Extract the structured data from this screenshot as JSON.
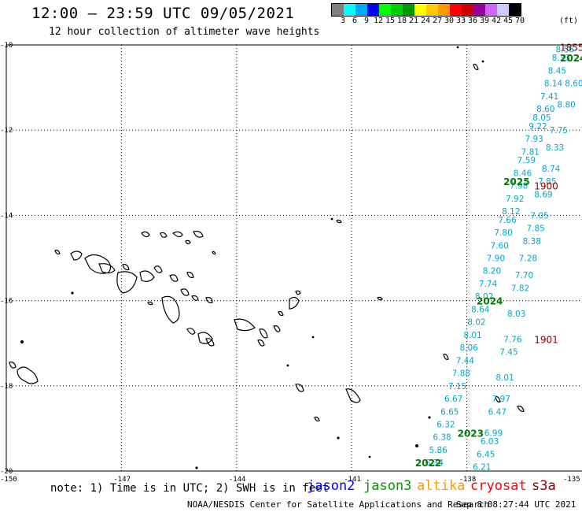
{
  "header": {
    "title": "12:00 — 23:59 UTC 09/05/2021",
    "subtitle": "12 hour collection of altimeter wave heights"
  },
  "legend": {
    "colors": [
      "#808080",
      "#00ffff",
      "#00aaff",
      "#0000ff",
      "#00ff00",
      "#00cc00",
      "#009900",
      "#ffff00",
      "#ffcc00",
      "#ff9900",
      "#ff0000",
      "#cc0000",
      "#990099",
      "#cc66ff",
      "#ccccff",
      "#000000"
    ],
    "labels": [
      "3",
      "6",
      "9",
      "12",
      "15",
      "18",
      "21",
      "24",
      "27",
      "30",
      "33",
      "36",
      "39",
      "42",
      "45",
      "70"
    ],
    "unit": "(ft)"
  },
  "map": {
    "lat_labels": [
      "-10",
      "-12",
      "-14",
      "-16",
      "-18",
      "-20"
    ],
    "lon_labels": [
      "-150",
      "-147",
      "-144",
      "-141",
      "-138",
      "-135"
    ],
    "track_color": "#00a8cc",
    "track_a": [
      {
        "lat": -10.1,
        "lon": -135.4,
        "value": "8.56"
      },
      {
        "lat": -10.3,
        "lon": -135.5,
        "value": "8.33"
      },
      {
        "lat": -10.6,
        "lon": -135.6,
        "value": "8.45"
      },
      {
        "lat": -10.9,
        "lon": -135.7,
        "value": "8.14"
      },
      {
        "lat": -11.2,
        "lon": -135.8,
        "value": "7.41"
      },
      {
        "lat": -11.5,
        "lon": -135.9,
        "value": "8.60"
      },
      {
        "lat": -11.7,
        "lon": -136.0,
        "value": "8.05"
      },
      {
        "lat": -11.9,
        "lon": -136.1,
        "value": "9.22"
      },
      {
        "lat": -12.2,
        "lon": -136.2,
        "value": "7.93"
      },
      {
        "lat": -12.5,
        "lon": -136.3,
        "value": "7.81"
      },
      {
        "lat": -12.7,
        "lon": -136.4,
        "value": "7.59"
      },
      {
        "lat": -13.0,
        "lon": -136.5,
        "value": "8.46"
      },
      {
        "lat": -13.3,
        "lon": -136.6,
        "value": "7.98"
      },
      {
        "lat": -13.6,
        "lon": -136.7,
        "value": "7.92"
      },
      {
        "lat": -13.9,
        "lon": -136.8,
        "value": "8.12"
      },
      {
        "lat": -14.1,
        "lon": -136.9,
        "value": "7.66"
      },
      {
        "lat": -14.4,
        "lon": -137.0,
        "value": "7.80"
      },
      {
        "lat": -14.7,
        "lon": -137.1,
        "value": "7.60"
      },
      {
        "lat": -15.0,
        "lon": -137.2,
        "value": "7.90"
      },
      {
        "lat": -15.3,
        "lon": -137.3,
        "value": "8.20"
      },
      {
        "lat": -15.6,
        "lon": -137.4,
        "value": "7.74"
      },
      {
        "lat": -15.9,
        "lon": -137.5,
        "value": "8.02"
      },
      {
        "lat": -16.2,
        "lon": -137.6,
        "value": "8.64"
      },
      {
        "lat": -16.5,
        "lon": -137.7,
        "value": "8.02"
      },
      {
        "lat": -16.8,
        "lon": -137.8,
        "value": "8.01"
      },
      {
        "lat": -17.1,
        "lon": -137.9,
        "value": "8.06"
      },
      {
        "lat": -17.4,
        "lon": -138.0,
        "value": "7.44"
      },
      {
        "lat": -17.7,
        "lon": -138.1,
        "value": "7.88"
      },
      {
        "lat": -18.0,
        "lon": -138.2,
        "value": "7.15"
      },
      {
        "lat": -18.3,
        "lon": -138.3,
        "value": "6.67"
      },
      {
        "lat": -18.6,
        "lon": -138.4,
        "value": "6.65"
      },
      {
        "lat": -18.9,
        "lon": -138.5,
        "value": "6.32"
      },
      {
        "lat": -19.2,
        "lon": -138.6,
        "value": "6.38"
      },
      {
        "lat": -19.5,
        "lon": -138.7,
        "value": "5.86"
      },
      {
        "lat": -19.8,
        "lon": -138.8,
        "value": "6.34"
      }
    ],
    "track_b": [
      {
        "lat": -10.9,
        "lon": -135.2,
        "value": "8.60"
      },
      {
        "lat": -11.4,
        "lon": -135.4,
        "value": "8.80"
      },
      {
        "lat": -12.0,
        "lon": -135.6,
        "value": "7.75"
      },
      {
        "lat": -12.4,
        "lon": -135.7,
        "value": "8.33"
      },
      {
        "lat": -12.9,
        "lon": -135.8,
        "value": "8.74"
      },
      {
        "lat": -13.2,
        "lon": -135.9,
        "value": "7.85"
      },
      {
        "lat": -13.5,
        "lon": -136.0,
        "value": "8.69"
      },
      {
        "lat": -14.0,
        "lon": -136.1,
        "value": "7.05"
      },
      {
        "lat": -14.3,
        "lon": -136.2,
        "value": "7.85"
      },
      {
        "lat": -14.6,
        "lon": -136.3,
        "value": "8.38"
      },
      {
        "lat": -15.0,
        "lon": -136.4,
        "value": "7.28"
      },
      {
        "lat": -15.4,
        "lon": -136.5,
        "value": "7.70"
      },
      {
        "lat": -15.7,
        "lon": -136.6,
        "value": "7.82"
      },
      {
        "lat": -16.3,
        "lon": -136.7,
        "value": "8.03"
      },
      {
        "lat": -16.9,
        "lon": -136.8,
        "value": "7.76"
      },
      {
        "lat": -17.2,
        "lon": -136.9,
        "value": "7.45"
      },
      {
        "lat": -17.8,
        "lon": -137.0,
        "value": "8.01"
      },
      {
        "lat": -18.3,
        "lon": -137.1,
        "value": "7.97"
      },
      {
        "lat": -18.6,
        "lon": -137.2,
        "value": "6.47"
      },
      {
        "lat": -19.1,
        "lon": -137.3,
        "value": "6.99"
      },
      {
        "lat": -19.3,
        "lon": -137.4,
        "value": "6.03"
      },
      {
        "lat": -19.6,
        "lon": -137.5,
        "value": "6.45"
      },
      {
        "lat": -19.9,
        "lon": -137.6,
        "value": "6.21"
      }
    ],
    "pass_labels": [
      {
        "text": "2024",
        "lat": -10.3,
        "lon": -135.2,
        "kind": "green"
      },
      {
        "text": "1855",
        "lat": -10.05,
        "lon": -135.3,
        "kind": "red"
      },
      {
        "text": "2025",
        "lat": -13.2,
        "lon": -136.8,
        "kind": "green"
      },
      {
        "text": "1900",
        "lat": -13.3,
        "lon": -136.0,
        "kind": "red"
      },
      {
        "text": "2024",
        "lat": -16.0,
        "lon": -137.5,
        "kind": "green"
      },
      {
        "text": "1901",
        "lat": -16.9,
        "lon": -136.0,
        "kind": "red"
      },
      {
        "text": "2023",
        "lat": -19.1,
        "lon": -138.0,
        "kind": "green"
      },
      {
        "text": "2022",
        "lat": -19.8,
        "lon": -139.1,
        "kind": "green"
      }
    ]
  },
  "footer": {
    "note": "note: 1) Time is in UTC; 2) SWH is in feet",
    "satellites": [
      {
        "name": "jason2",
        "color": "#0000ff"
      },
      {
        "name": "jason3",
        "color": "#009900"
      },
      {
        "name": "altika",
        "color": "#ff9900"
      },
      {
        "name": "cryosat",
        "color": "#ff0000"
      },
      {
        "name": "s3a",
        "color": "#8b0000"
      }
    ],
    "credit": "NOAA/NESDIS Center for Satellite Applications and Research",
    "timestamp": "Sep  8 08:27:44 UTC 2021"
  }
}
